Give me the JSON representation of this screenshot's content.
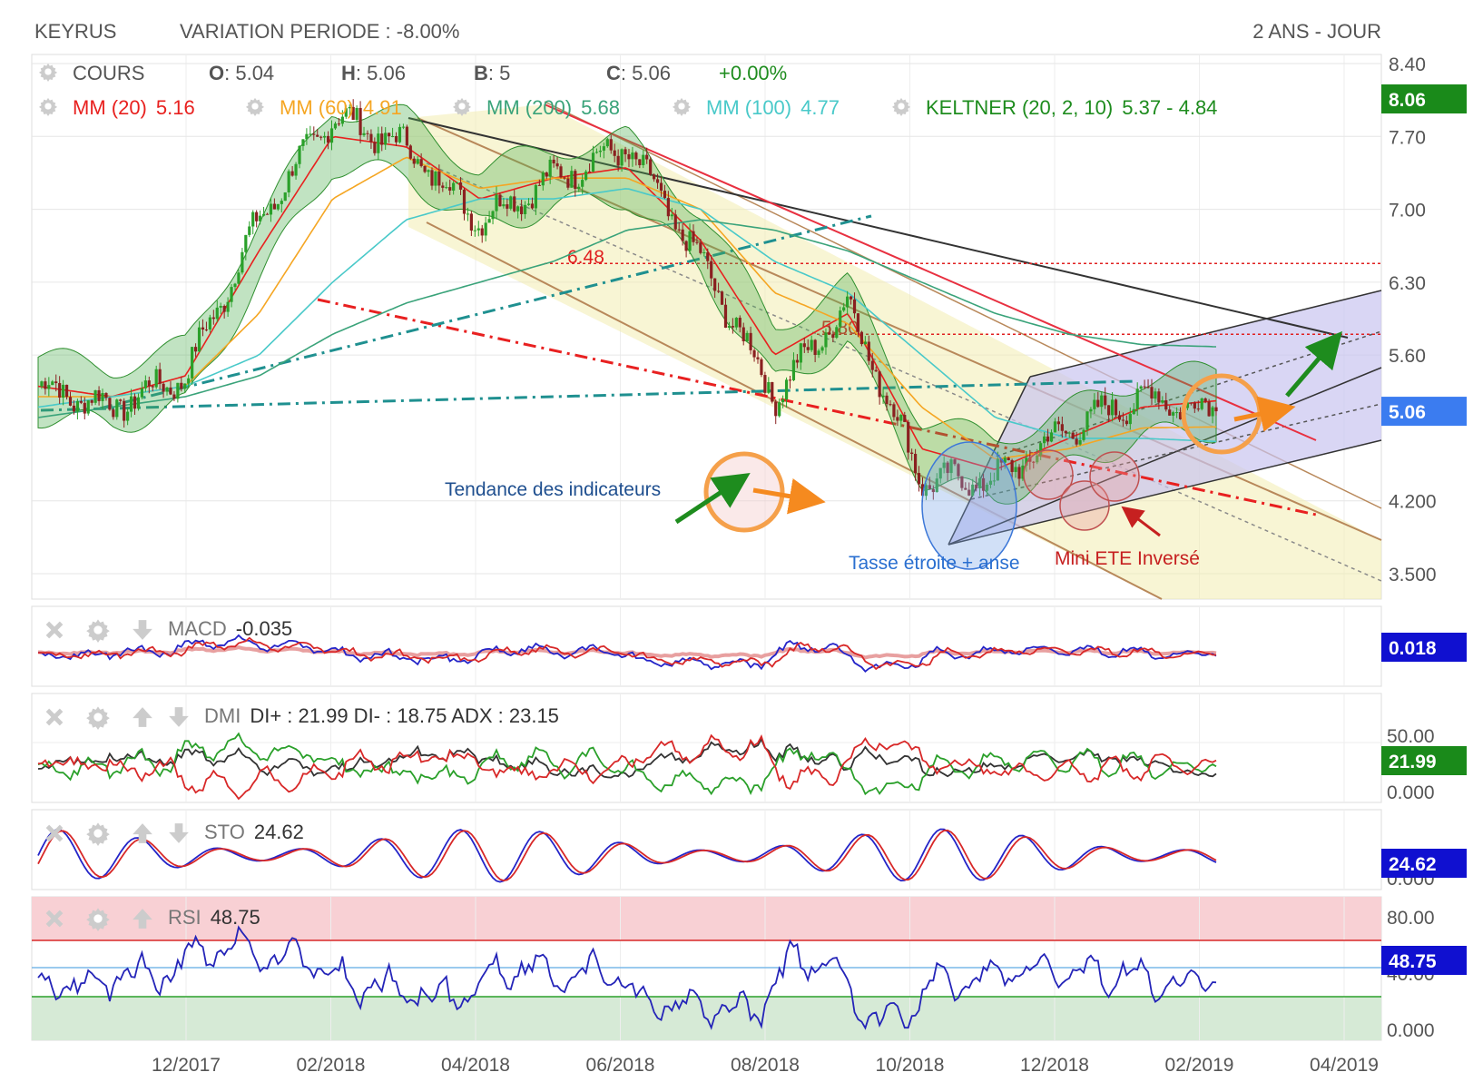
{
  "header": {
    "symbol": "KEYRUS",
    "variation_label": "VARIATION PERIODE : -8.00%",
    "period": "2 ANS - JOUR"
  },
  "legend": {
    "cours": {
      "label": "COURS",
      "o_key": "O",
      "o_val": ": 5.04",
      "h_key": "H",
      "h_val": ": 5.06",
      "b_key": "B",
      "b_val": ": 5",
      "c_key": "C",
      "c_val": ": 5.06",
      "change": "+0.00%"
    },
    "mm20": {
      "label": "MM (20)",
      "value": "5.16",
      "color": "#e8211f"
    },
    "mm60": {
      "label": "MM (60)",
      "value": "4.91",
      "color": "#f5a623"
    },
    "mm200": {
      "label": "MM (200)",
      "value": "5.68",
      "color": "#3aa37a"
    },
    "mm100": {
      "label": "MM (100)",
      "value": "4.77",
      "color": "#49c9c9"
    },
    "keltner": {
      "label": "KELTNER (20, 2, 10)",
      "value": "5.37 - 4.84",
      "color": "#1e8c1e"
    }
  },
  "price_axis": {
    "ticks": [
      {
        "y": 8.4,
        "label": "8.40"
      },
      {
        "y": 7.7,
        "label": "7.70"
      },
      {
        "y": 7.0,
        "label": "7.00"
      },
      {
        "y": 6.3,
        "label": "6.30"
      },
      {
        "y": 5.6,
        "label": "5.60"
      },
      {
        "y": 4.2,
        "label": "4.200"
      },
      {
        "y": 3.5,
        "label": "3.500"
      }
    ],
    "badge_top": {
      "value": 8.06,
      "label": "8.06",
      "color": "#1a8a1a"
    },
    "badge_last": {
      "value": 5.06,
      "label": "5.06",
      "color": "#3b7cf0"
    }
  },
  "time_axis": [
    "12/2017",
    "02/2018",
    "04/2018",
    "06/2018",
    "08/2018",
    "10/2018",
    "12/2018",
    "02/2019",
    "04/2019"
  ],
  "annotations": {
    "trend": "Tendance des indicateurs",
    "cup": "Tasse étroite + anse",
    "ete": "Mini ETE Inversé",
    "level_648": "6.48",
    "level_580": "5.80"
  },
  "indicators": {
    "macd": {
      "label": "MACD",
      "value": "-0.035",
      "badge": "0.018",
      "badge_color": "#1010d0"
    },
    "dmi": {
      "label": "DMI",
      "values": "DI+ : 21.99 DI- : 18.75 ADX : 23.15",
      "badge": "21.99",
      "badge_color": "#1a8a1a",
      "tick_top": "50.00",
      "tick_bottom": "0.000"
    },
    "sto": {
      "label": "STO",
      "value": "24.62",
      "badge": "24.62",
      "badge_color": "#1010d0",
      "tick_bottom": "0.000"
    },
    "rsi": {
      "label": "RSI",
      "value": "48.75",
      "badge": "48.75",
      "badge_color": "#1010d0",
      "tick_top": "80.00",
      "tick_mid": "40.00",
      "tick_bottom": "0.000"
    }
  },
  "icons": {
    "gear": "gear-icon",
    "close": "close-icon",
    "arrow_up": "arrow-up-icon",
    "arrow_down": "arrow-down-icon"
  },
  "chart_data": {
    "type": "line",
    "title": "KEYRUS",
    "ylim": [
      3.3,
      8.5
    ],
    "x": [
      "2017-10",
      "2017-11",
      "2017-12",
      "2018-01",
      "2018-02",
      "2018-03",
      "2018-04",
      "2018-05",
      "2018-06",
      "2018-07",
      "2018-08",
      "2018-09",
      "2018-10",
      "2018-11",
      "2018-12",
      "2019-01",
      "2019-02"
    ],
    "series": [
      {
        "name": "COURS",
        "values": [
          5.3,
          5.1,
          5.4,
          6.9,
          7.9,
          7.6,
          6.9,
          7.3,
          7.6,
          6.5,
          5.2,
          6.1,
          4.4,
          4.4,
          4.9,
          5.2,
          5.06
        ]
      },
      {
        "name": "MM (20)",
        "values": [
          5.3,
          5.2,
          5.4,
          6.6,
          7.7,
          7.6,
          7.1,
          7.3,
          7.4,
          6.7,
          5.6,
          6.0,
          4.7,
          4.5,
          4.8,
          5.1,
          5.16
        ]
      },
      {
        "name": "MM (60)",
        "values": [
          5.2,
          5.2,
          5.3,
          6.0,
          7.1,
          7.5,
          7.2,
          7.3,
          7.3,
          7.0,
          6.2,
          5.9,
          5.1,
          4.6,
          4.7,
          4.9,
          4.91
        ]
      },
      {
        "name": "MM (100)",
        "values": [
          5.1,
          5.2,
          5.3,
          5.6,
          6.3,
          6.9,
          7.1,
          7.1,
          7.2,
          7.0,
          6.5,
          6.2,
          5.6,
          5.0,
          4.8,
          4.8,
          4.77
        ]
      },
      {
        "name": "MM (200)",
        "values": [
          5.0,
          5.1,
          5.2,
          5.4,
          5.8,
          6.1,
          6.3,
          6.5,
          6.8,
          6.9,
          6.8,
          6.6,
          6.3,
          6.0,
          5.8,
          5.7,
          5.68
        ]
      }
    ],
    "levels": [
      6.48,
      5.8
    ],
    "indicators": {
      "MACD": -0.035,
      "DMI": {
        "DI+": 21.99,
        "DI-": 18.75,
        "ADX": 23.15
      },
      "STO": 24.62,
      "RSI": 48.75
    }
  }
}
